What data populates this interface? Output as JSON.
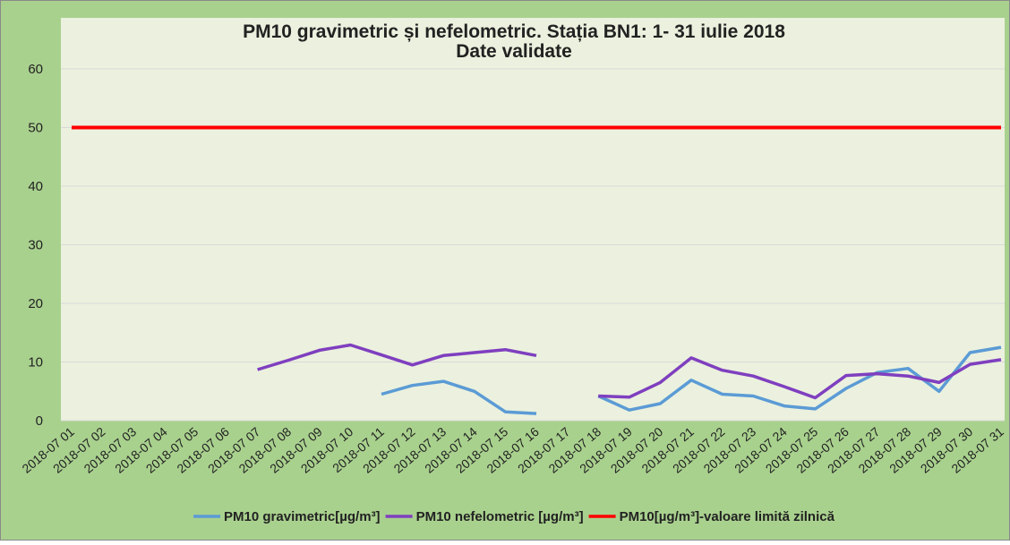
{
  "chart_data": {
    "type": "line",
    "title": "PM10 gravimetric și nefelometric. Stația BN1: 1- 31 iulie 2018",
    "subtitle": "Date validate",
    "categories": [
      "2018-07 01",
      "2018-07 02",
      "2018-07 03",
      "2018-07 04",
      "2018-07 05",
      "2018-07 06",
      "2018-07 07",
      "2018-07 08",
      "2018-07 09",
      "2018-07 10",
      "2018-07 11",
      "2018-07 12",
      "2018-07 13",
      "2018-07 14",
      "2018-07 15",
      "2018-07 16",
      "2018-07 17",
      "2018-07 18",
      "2018-07 19",
      "2018-07 20",
      "2018-07 21",
      "2018-07 22",
      "2018-07 23",
      "2018-07 24",
      "2018-07 25",
      "2018-07 26",
      "2018-07 27",
      "2018-07 28",
      "2018-07 29",
      "2018-07 30",
      "2018-07 31"
    ],
    "series": [
      {
        "name": "PM10 gravimetric[µg/m³]",
        "color": "#5b9bd5",
        "values": [
          null,
          null,
          null,
          null,
          null,
          null,
          null,
          null,
          null,
          null,
          4.5,
          6.0,
          6.7,
          5.0,
          1.5,
          1.2,
          null,
          4.2,
          1.8,
          2.9,
          6.9,
          4.5,
          4.2,
          2.5,
          2.0,
          5.5,
          8.2,
          8.9,
          5.0,
          11.6,
          12.5
        ]
      },
      {
        "name": "PM10 nefelometric [µg/m³]",
        "color": "#7f3fbf",
        "values": [
          null,
          null,
          null,
          null,
          null,
          null,
          8.7,
          10.3,
          12.0,
          12.9,
          11.2,
          9.5,
          11.1,
          11.6,
          12.1,
          11.1,
          null,
          4.2,
          4.0,
          6.5,
          10.7,
          8.6,
          7.6,
          5.8,
          3.9,
          7.7,
          8.0,
          7.6,
          6.5,
          9.6,
          10.4
        ]
      },
      {
        "name": "PM10[µg/m³]-valoare limită zilnică",
        "color": "#ff0000",
        "values": [
          50,
          50,
          50,
          50,
          50,
          50,
          50,
          50,
          50,
          50,
          50,
          50,
          50,
          50,
          50,
          50,
          50,
          50,
          50,
          50,
          50,
          50,
          50,
          50,
          50,
          50,
          50,
          50,
          50,
          50,
          50
        ]
      }
    ],
    "ylim": [
      0,
      60
    ],
    "yticks": [
      0,
      10,
      20,
      30,
      40,
      50,
      60
    ],
    "grid": true,
    "legend": "bottom"
  }
}
